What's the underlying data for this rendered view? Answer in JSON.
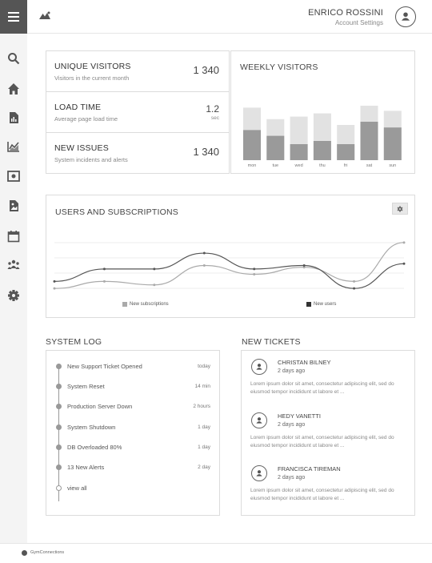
{
  "header": {
    "user_name": "ENRICO ROSSINI",
    "user_sub": "Account Settings"
  },
  "sidebar": {
    "items": [
      {
        "icon": "search-icon"
      },
      {
        "icon": "home-icon"
      },
      {
        "icon": "document-icon"
      },
      {
        "icon": "chart-icon"
      },
      {
        "icon": "image-icon"
      },
      {
        "icon": "file-image-icon"
      },
      {
        "icon": "calendar-icon"
      },
      {
        "icon": "users-icon"
      },
      {
        "icon": "gear-icon"
      }
    ]
  },
  "stats": [
    {
      "title": "UNIQUE VISITORS",
      "sub": "Visitors in the current month",
      "value": "1 340"
    },
    {
      "title": "LOAD TIME",
      "sub": "Average page load time",
      "value": "1.2",
      "unit": "sec"
    },
    {
      "title": "NEW ISSUES",
      "sub": "System incidents and alerts",
      "value": "1 340"
    }
  ],
  "weekly": {
    "title": "WEEKLY VISITORS"
  },
  "users": {
    "title": "USERS AND SUBSCRIPTIONS",
    "legend_subs": "New subscriptions",
    "legend_users": "New users"
  },
  "chart_data": [
    {
      "type": "bar",
      "title": "WEEKLY VISITORS",
      "categories": [
        "mon",
        "tue",
        "wed",
        "thu",
        "fri",
        "sat",
        "sun"
      ],
      "series": [
        {
          "values": [
            47,
            38,
            25,
            30,
            25,
            60,
            51
          ]
        },
        {
          "values": [
            82,
            64,
            68,
            73,
            55,
            85,
            77
          ]
        }
      ],
      "ylim": [
        0,
        100
      ],
      "colors": [
        "#9a9a9a",
        "#e2e2e2"
      ]
    },
    {
      "type": "line",
      "title": "USERS AND SUBSCRIPTIONS",
      "x": [
        0,
        1,
        2,
        3,
        4,
        5,
        6,
        7
      ],
      "series": [
        {
          "name": "New subscriptions",
          "values": [
            2,
            4,
            3,
            8.5,
            6,
            8,
            4,
            15
          ],
          "color": "#aaaaaa"
        },
        {
          "name": "New users",
          "values": [
            4,
            7.5,
            7.5,
            12,
            7.5,
            8.5,
            2,
            9
          ],
          "color": "#555555"
        }
      ],
      "ylim": [
        0,
        17
      ]
    }
  ],
  "syslog": {
    "title": "SYSTEM LOG",
    "items": [
      {
        "text": "New Support Ticket Opened",
        "time": "today"
      },
      {
        "text": "System Reset",
        "time": "14 min"
      },
      {
        "text": "Production Server Down",
        "time": "2 hours"
      },
      {
        "text": "System Shutdown",
        "time": "1 day"
      },
      {
        "text": "DB Overloaded 80%",
        "time": "1 day"
      },
      {
        "text": "13 New Alerts",
        "time": "2 day"
      },
      {
        "text": "view all",
        "time": ""
      }
    ]
  },
  "tickets": {
    "title": "NEW TICKETS",
    "items": [
      {
        "name": "CHRISTAN BILNEY",
        "time": "2 days ago",
        "body": "Lorem ipsum dolor sit amet, consectetur adipiscing elit, sed do eiusmod tempor incididunt ut labore et ..."
      },
      {
        "name": "HEDY VANETTI",
        "time": "2 days ago",
        "body": "Lorem ipsum dolor sit amet, consectetur adipiscing elit, sed do eiusmod tempor incididunt ut labore et ..."
      },
      {
        "name": "FRANCISCA TIREMAN",
        "time": "2 days ago",
        "body": "Lorem ipsum dolor sit amet, consectetur adipiscing elit, sed do eiusmod tempor incididunt ut labore et ..."
      }
    ]
  },
  "footer": {
    "text": "GymConnections"
  }
}
